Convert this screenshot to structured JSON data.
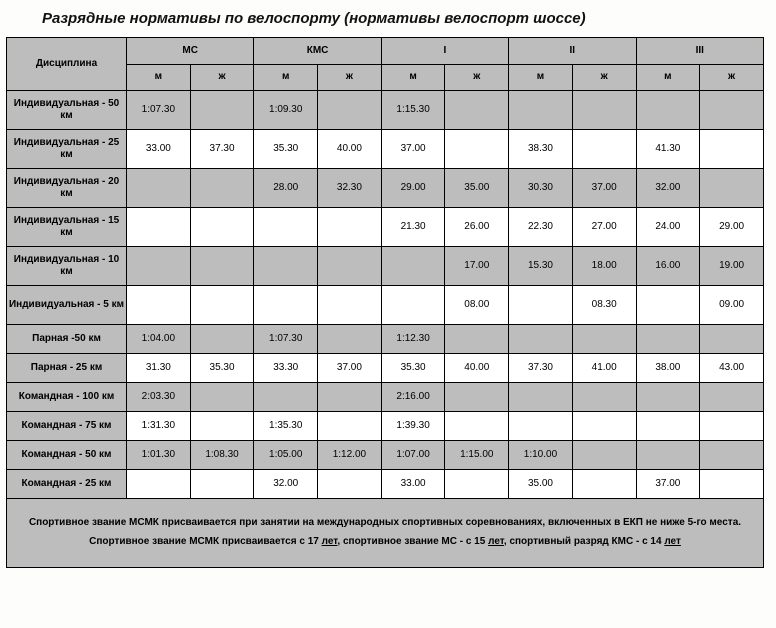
{
  "title": "Разрядные нормативы по велоспорту (нормативы велоспорт шоссе)",
  "columns": {
    "discipline": "Дисциплина",
    "groups": [
      "МС",
      "КМС",
      "I",
      "II",
      "III"
    ],
    "sub": {
      "m": "м",
      "w": "ж"
    }
  },
  "rows": [
    {
      "shade": true,
      "label": "Индивидуальная - 50 км",
      "cells": [
        "1:07.30",
        "",
        "1:09.30",
        "",
        "1:15.30",
        "",
        "",
        "",
        "",
        ""
      ]
    },
    {
      "shade": false,
      "label": "Индивидуальная - 25 км",
      "cells": [
        "33.00",
        "37.30",
        "35.30",
        "40.00",
        "37.00",
        "",
        "38.30",
        "",
        "41.30",
        ""
      ]
    },
    {
      "shade": true,
      "label": "Индивидуальная - 20 км",
      "cells": [
        "",
        "",
        "28.00",
        "32.30",
        "29.00",
        "35.00",
        "30.30",
        "37.00",
        "32.00",
        ""
      ]
    },
    {
      "shade": false,
      "label": "Индивидуальная - 15 км",
      "cells": [
        "",
        "",
        "",
        "",
        "21.30",
        "26.00",
        "22.30",
        "27.00",
        "24.00",
        "29.00"
      ]
    },
    {
      "shade": true,
      "label": "Индивидуальная - 10 км",
      "cells": [
        "",
        "",
        "",
        "",
        "",
        "17.00",
        "15.30",
        "18.00",
        "16.00",
        "19.00"
      ]
    },
    {
      "shade": false,
      "label": "Индивидуальная - 5 км",
      "cells": [
        "",
        "",
        "",
        "",
        "",
        "08.00",
        "",
        "08.30",
        "",
        "09.00"
      ]
    },
    {
      "shade": true,
      "compact": true,
      "label": "Парная -50 км",
      "cells": [
        "1:04.00",
        "",
        "1:07.30",
        "",
        "1:12.30",
        "",
        "",
        "",
        "",
        ""
      ]
    },
    {
      "shade": false,
      "compact": true,
      "label": "Парная - 25 км",
      "cells": [
        "31.30",
        "35.30",
        "33.30",
        "37.00",
        "35.30",
        "40.00",
        "37.30",
        "41.00",
        "38.00",
        "43.00"
      ]
    },
    {
      "shade": true,
      "compact": true,
      "label": "Командная - 100 км",
      "cells": [
        "2:03.30",
        "",
        "",
        "",
        "2:16.00",
        "",
        "",
        "",
        "",
        ""
      ]
    },
    {
      "shade": false,
      "compact": true,
      "label": "Командная - 75 км",
      "cells": [
        "1:31.30",
        "",
        "1:35.30",
        "",
        "1:39.30",
        "",
        "",
        "",
        "",
        ""
      ]
    },
    {
      "shade": true,
      "compact": true,
      "label": "Командная  - 50 км",
      "cells": [
        "1:01.30",
        "1:08.30",
        "1:05.00",
        "1:12.00",
        "1:07.00",
        "1:15.00",
        "1:10.00",
        "",
        "",
        ""
      ]
    },
    {
      "shade": false,
      "compact": true,
      "label": "Командная - 25 км",
      "cells": [
        "",
        "",
        "32.00",
        "",
        "33.00",
        "",
        "35.00",
        "",
        "37.00",
        ""
      ]
    }
  ],
  "notes": {
    "line1_a": "Спортивное звание МСМК присваивается при занятии на международных спортивных соревнованиях, включенных в ЕКП не ниже 5-го места.",
    "line2_a": "Спортивное звание МСМК присваивается с 17 ",
    "line2_u1": "лет",
    "line2_b": ", спортивное звание МС - с 15 ",
    "line2_u2": "лет",
    "line2_c": ", спортивный разряд КМС - с 14 ",
    "line2_u3": "лет"
  },
  "style": {
    "shaded_bg": "#bdbdbd",
    "white_bg": "#ffffff",
    "border": "#000000"
  }
}
